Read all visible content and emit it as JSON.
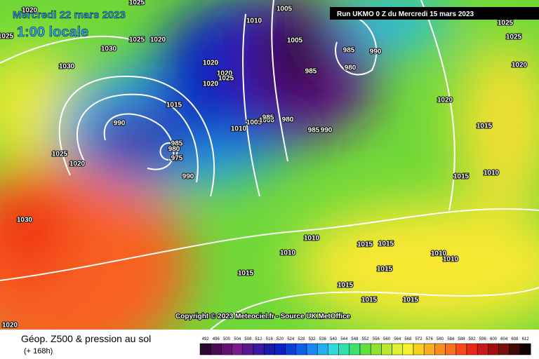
{
  "header": {
    "date": "Mercredi 22 mars 2023",
    "time": "1:00 locale",
    "run": "Run UKMO 0 Z du Mercredi 15 mars 2023",
    "copyright": "Copyright © 2023 Meteociel.fr - Source UK MetOffice"
  },
  "footer": {
    "title": "Géop. Z500 & pression au sol",
    "lead": "(+ 168h)"
  },
  "scale": {
    "values": [
      492,
      496,
      500,
      504,
      508,
      512,
      516,
      520,
      524,
      528,
      532,
      536,
      540,
      544,
      548,
      552,
      556,
      560,
      564,
      568,
      572,
      576,
      580,
      584,
      588,
      592,
      596,
      600,
      604,
      608,
      612
    ],
    "colors": [
      "#2a0830",
      "#4a0c50",
      "#660f70",
      "#7a1a8c",
      "#5a1890",
      "#3a1aa0",
      "#1a1aa8",
      "#0a20c0",
      "#0a40d8",
      "#0a60e8",
      "#1a88f0",
      "#20b0f0",
      "#30d8e0",
      "#30e0b0",
      "#40e070",
      "#60e040",
      "#90e030",
      "#b8e830",
      "#e0f030",
      "#f8f030",
      "#f8d020",
      "#f8b020",
      "#f89020",
      "#f87020",
      "#f84a18",
      "#e82818",
      "#c81818",
      "#a01010",
      "#781010",
      "#400808",
      "#100000"
    ]
  },
  "isobars": [
    "1020",
    "1025",
    "1025",
    "1030",
    "1030",
    "1025",
    "1020",
    "1020",
    "1020",
    "1025",
    "1020",
    "1015",
    "990",
    "985",
    "980",
    "975",
    "990",
    "1025",
    "1020",
    "1030",
    "1010",
    "1005",
    "1000",
    "1005",
    "1010",
    "1005",
    "985",
    "990",
    "980",
    "985",
    "985",
    "980",
    "985",
    "990",
    "1020",
    "1015",
    "1010",
    "1015",
    "1010",
    "1010",
    "1015",
    "1015",
    "1015",
    "1015",
    "1015",
    "1015",
    "1015",
    "1010",
    "1010",
    "1025",
    "1020",
    "1025",
    "1020"
  ]
}
